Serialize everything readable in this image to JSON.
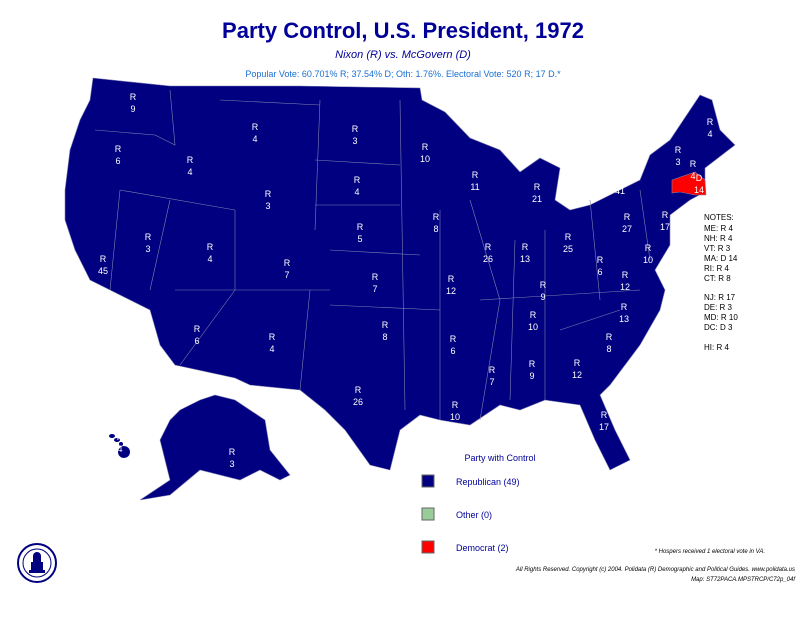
{
  "header": {
    "title": "Party Control, U.S. President, 1972",
    "subtitle": "Nixon (R) vs. McGovern (D)",
    "summary": "Popular Vote: 60.701% R; 37.54% D; Oth: 1.76%. Electoral Vote: 520 R; 17 D.*"
  },
  "states": [
    {
      "party": "R",
      "votes": 9
    },
    {
      "party": "R",
      "votes": 6
    },
    {
      "party": "R",
      "votes": 4
    },
    {
      "party": "R",
      "votes": 4
    },
    {
      "party": "R",
      "votes": 3
    },
    {
      "party": "R",
      "votes": 3
    },
    {
      "party": "R",
      "votes": 4
    },
    {
      "party": "R",
      "votes": 5
    },
    {
      "party": "R",
      "votes": 7
    },
    {
      "party": "R",
      "votes": 8
    },
    {
      "party": "R",
      "votes": 26
    },
    {
      "party": "R",
      "votes": 3
    },
    {
      "party": "R",
      "votes": 45
    },
    {
      "party": "R",
      "votes": 4
    },
    {
      "party": "R",
      "votes": 7
    },
    {
      "party": "R",
      "votes": 6
    },
    {
      "party": "R",
      "votes": 4
    },
    {
      "party": "R",
      "votes": 10
    },
    {
      "party": "R",
      "votes": 8
    },
    {
      "party": "R",
      "votes": 12
    },
    {
      "party": "R",
      "votes": 6
    },
    {
      "party": "R",
      "votes": 10
    },
    {
      "party": "R",
      "votes": 11
    },
    {
      "party": "R",
      "votes": 26
    },
    {
      "party": "R",
      "votes": 21
    },
    {
      "party": "R",
      "votes": 13
    },
    {
      "party": "R",
      "votes": 25
    },
    {
      "party": "R",
      "votes": 9
    },
    {
      "party": "R",
      "votes": 10
    },
    {
      "party": "R",
      "votes": 7
    },
    {
      "party": "R",
      "votes": 9
    },
    {
      "party": "R",
      "votes": 12
    },
    {
      "party": "R",
      "votes": 17
    },
    {
      "party": "R",
      "votes": 8
    },
    {
      "party": "R",
      "votes": 13
    },
    {
      "party": "R",
      "votes": 12
    },
    {
      "party": "R",
      "votes": 6
    },
    {
      "party": "R",
      "votes": 27
    },
    {
      "party": "R",
      "votes": 41
    },
    {
      "party": "R",
      "votes": 3
    },
    {
      "party": "R",
      "votes": 4
    },
    {
      "party": "R",
      "votes": 4
    },
    {
      "party": "D",
      "votes": 14
    },
    {
      "party": "R",
      "votes": 17
    },
    {
      "party": "R",
      "votes": 10
    },
    {
      "party": "R",
      "votes": 3
    },
    {
      "party": "R",
      "votes": 4
    }
  ],
  "notes": {
    "heading": "NOTES:",
    "items": [
      "ME: R 4",
      "NH: R 4",
      "VT: R 3",
      "MA: D 14",
      "RI: R 4",
      "CT: R 8",
      "NJ: R 17",
      "DE: R 3",
      "MD: R 10",
      "DC: D 3",
      "HI: R 4"
    ]
  },
  "legend": {
    "title": "Party with Control",
    "items": [
      "Republican (49)",
      "Other (0)",
      "Democrat (2)"
    ]
  },
  "footnote": "* Hospers received 1 electoral vote in VA.",
  "copyright": "All Rights Reserved. Copyright (c) 2004. Polidata (R) Demographic and Political Guides. www.polidata.us",
  "map_id": "Map: ST72PACA.MPSTRCP/C72p_04f"
}
